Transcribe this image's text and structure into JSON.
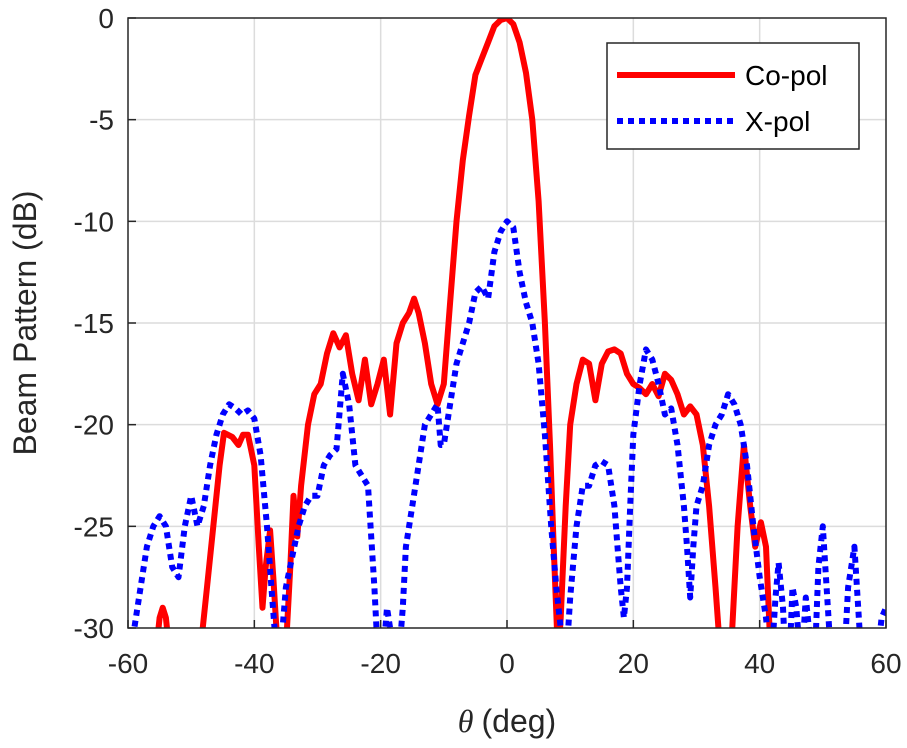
{
  "chart_data": {
    "type": "line",
    "title": "",
    "xlabel_symbol": "θ",
    "xlabel_unit": "(deg)",
    "ylabel": "Beam Pattern (dB)",
    "xlim": [
      -60,
      60
    ],
    "ylim": [
      -30,
      0
    ],
    "xticks": [
      -60,
      -40,
      -20,
      0,
      20,
      40,
      60
    ],
    "yticks": [
      0,
      -5,
      -10,
      -15,
      -20,
      -25,
      -30
    ],
    "grid": true,
    "legend_position": "top-right",
    "series": [
      {
        "name": "Co-pol",
        "color": "#ff0000",
        "style": "solid",
        "points": [
          [
            -55.5,
            -31
          ],
          [
            -55,
            -29.5
          ],
          [
            -54.5,
            -29
          ],
          [
            -54,
            -29.5
          ],
          [
            -53.5,
            -31
          ],
          [
            -48.5,
            -31
          ],
          [
            -47.5,
            -28
          ],
          [
            -46.5,
            -25
          ],
          [
            -45.5,
            -22
          ],
          [
            -44.8,
            -20.4
          ],
          [
            -43.5,
            -20.6
          ],
          [
            -42.5,
            -21
          ],
          [
            -41.8,
            -20.5
          ],
          [
            -41,
            -20.5
          ],
          [
            -40,
            -22
          ],
          [
            -39.3,
            -26
          ],
          [
            -38.7,
            -29
          ],
          [
            -38.2,
            -27
          ],
          [
            -37.5,
            -25.2
          ],
          [
            -37,
            -27.5
          ],
          [
            -36.5,
            -30
          ],
          [
            -36.2,
            -31
          ],
          [
            -35,
            -31
          ],
          [
            -34.3,
            -27
          ],
          [
            -33.8,
            -23.5
          ],
          [
            -33.2,
            -25.5
          ],
          [
            -32.6,
            -23
          ],
          [
            -31.5,
            -20
          ],
          [
            -30.5,
            -18.5
          ],
          [
            -29.5,
            -18
          ],
          [
            -28.5,
            -16.5
          ],
          [
            -27.5,
            -15.5
          ],
          [
            -26.5,
            -16.2
          ],
          [
            -25.5,
            -15.6
          ],
          [
            -24.5,
            -17.5
          ],
          [
            -23.5,
            -18.8
          ],
          [
            -22.5,
            -16.8
          ],
          [
            -21.5,
            -19
          ],
          [
            -20.5,
            -18
          ],
          [
            -19.5,
            -16.8
          ],
          [
            -18.5,
            -19.5
          ],
          [
            -17.5,
            -16
          ],
          [
            -16.5,
            -15
          ],
          [
            -15.5,
            -14.5
          ],
          [
            -14.7,
            -13.8
          ],
          [
            -14,
            -14.5
          ],
          [
            -13,
            -16
          ],
          [
            -12,
            -18
          ],
          [
            -11,
            -19
          ],
          [
            -10,
            -18
          ],
          [
            -9,
            -14
          ],
          [
            -8,
            -10
          ],
          [
            -7,
            -7
          ],
          [
            -6,
            -4.8
          ],
          [
            -5,
            -2.8
          ],
          [
            -4,
            -2
          ],
          [
            -3,
            -1.2
          ],
          [
            -2,
            -0.4
          ],
          [
            -1,
            -0.1
          ],
          [
            0,
            0
          ],
          [
            1,
            -0.3
          ],
          [
            2,
            -1.2
          ],
          [
            3,
            -2.7
          ],
          [
            4,
            -5
          ],
          [
            5,
            -9
          ],
          [
            6,
            -15
          ],
          [
            6.8,
            -21
          ],
          [
            7.4,
            -26
          ],
          [
            7.9,
            -30
          ],
          [
            8.2,
            -31
          ],
          [
            8.2,
            -31
          ],
          [
            8.5,
            -29.5
          ],
          [
            9.3,
            -24
          ],
          [
            10,
            -20
          ],
          [
            11,
            -18
          ],
          [
            12,
            -16.8
          ],
          [
            13,
            -17
          ],
          [
            14,
            -18.8
          ],
          [
            15,
            -17
          ],
          [
            16,
            -16.4
          ],
          [
            17,
            -16.3
          ],
          [
            18,
            -16.5
          ],
          [
            19,
            -17.5
          ],
          [
            20,
            -18
          ],
          [
            21,
            -18.2
          ],
          [
            22,
            -18.5
          ],
          [
            23,
            -18
          ],
          [
            24,
            -18.6
          ],
          [
            25,
            -17.5
          ],
          [
            26,
            -17.8
          ],
          [
            27,
            -18.5
          ],
          [
            28,
            -19.5
          ],
          [
            29,
            -19.1
          ],
          [
            30,
            -19.5
          ],
          [
            31,
            -21
          ],
          [
            32,
            -24
          ],
          [
            33,
            -28
          ],
          [
            33.7,
            -31
          ],
          [
            35.5,
            -31
          ],
          [
            36.5,
            -25
          ],
          [
            37.5,
            -21
          ],
          [
            38.5,
            -24
          ],
          [
            39.3,
            -26
          ],
          [
            40.2,
            -24.8
          ],
          [
            41,
            -26
          ],
          [
            41.7,
            -31
          ]
        ]
      },
      {
        "name": "X-pol",
        "color": "#0000ff",
        "style": "dotted",
        "points": [
          [
            -59.5,
            -31
          ],
          [
            -58,
            -28
          ],
          [
            -57,
            -26
          ],
          [
            -56,
            -25
          ],
          [
            -55,
            -24.5
          ],
          [
            -54,
            -25
          ],
          [
            -53,
            -27
          ],
          [
            -52,
            -27.5
          ],
          [
            -51,
            -25
          ],
          [
            -50,
            -23.5
          ],
          [
            -49,
            -25
          ],
          [
            -48,
            -24
          ],
          [
            -47,
            -22
          ],
          [
            -46,
            -20.5
          ],
          [
            -45,
            -19.5
          ],
          [
            -44,
            -19
          ],
          [
            -43,
            -19.2
          ],
          [
            -42,
            -19.5
          ],
          [
            -41,
            -19.3
          ],
          [
            -40,
            -19.7
          ],
          [
            -39,
            -21.5
          ],
          [
            -38,
            -25
          ],
          [
            -37.3,
            -28
          ],
          [
            -36.8,
            -30
          ],
          [
            -36.5,
            -31
          ],
          [
            -35.8,
            -31
          ],
          [
            -35,
            -28
          ],
          [
            -34,
            -26.5
          ],
          [
            -33,
            -25
          ],
          [
            -32,
            -24
          ],
          [
            -31,
            -23.5
          ],
          [
            -30,
            -23.5
          ],
          [
            -29,
            -22
          ],
          [
            -28,
            -21.5
          ],
          [
            -27,
            -21.2
          ],
          [
            -26,
            -17.5
          ],
          [
            -25,
            -19
          ],
          [
            -24,
            -22
          ],
          [
            -23,
            -22.5
          ],
          [
            -22,
            -23
          ],
          [
            -21,
            -28
          ],
          [
            -20.5,
            -31
          ],
          [
            -19.5,
            -31
          ],
          [
            -19,
            -29
          ],
          [
            -18.5,
            -30
          ],
          [
            -18,
            -31
          ],
          [
            -17,
            -31
          ],
          [
            -16.5,
            -29
          ],
          [
            -16,
            -26
          ],
          [
            -15,
            -24
          ],
          [
            -14,
            -22
          ],
          [
            -13,
            -20
          ],
          [
            -12,
            -19.5
          ],
          [
            -11,
            -19
          ],
          [
            -10.5,
            -21
          ],
          [
            -10,
            -21
          ],
          [
            -9,
            -19
          ],
          [
            -8,
            -17
          ],
          [
            -7,
            -16
          ],
          [
            -6,
            -15
          ],
          [
            -5,
            -13.5
          ],
          [
            -4,
            -13.2
          ],
          [
            -3,
            -13.8
          ],
          [
            -2,
            -11.5
          ],
          [
            -1,
            -10.5
          ],
          [
            0,
            -10
          ],
          [
            1,
            -10.3
          ],
          [
            2,
            -12.5
          ],
          [
            3,
            -14
          ],
          [
            4,
            -15
          ],
          [
            5,
            -17
          ],
          [
            6,
            -20.5
          ],
          [
            7,
            -25
          ],
          [
            7.8,
            -28
          ],
          [
            8.5,
            -30
          ],
          [
            9,
            -31
          ],
          [
            9.5,
            -31
          ],
          [
            10,
            -28.5
          ],
          [
            11,
            -25
          ],
          [
            12,
            -23
          ],
          [
            13,
            -23
          ],
          [
            14,
            -22
          ],
          [
            15,
            -21.8
          ],
          [
            16,
            -22
          ],
          [
            17,
            -24
          ],
          [
            17.5,
            -26
          ],
          [
            18,
            -28
          ],
          [
            18.5,
            -29.5
          ],
          [
            19,
            -28
          ],
          [
            19.5,
            -24
          ],
          [
            20,
            -20.5
          ],
          [
            21,
            -18
          ],
          [
            22,
            -16.3
          ],
          [
            23,
            -16.8
          ],
          [
            24,
            -18
          ],
          [
            25,
            -19.5
          ],
          [
            26,
            -19.2
          ],
          [
            27,
            -21
          ],
          [
            28,
            -24
          ],
          [
            28.5,
            -26
          ],
          [
            29,
            -28.5
          ],
          [
            29.5,
            -26
          ],
          [
            30,
            -24
          ],
          [
            31,
            -23
          ],
          [
            32,
            -21
          ],
          [
            33,
            -20
          ],
          [
            34,
            -19.5
          ],
          [
            35,
            -18.5
          ],
          [
            36,
            -19
          ],
          [
            37,
            -20
          ],
          [
            38,
            -22
          ],
          [
            39,
            -25
          ],
          [
            40,
            -27.5
          ],
          [
            41,
            -29.5
          ],
          [
            41.5,
            -31
          ],
          [
            42,
            -31
          ],
          [
            42.5,
            -28.5
          ],
          [
            43,
            -26.8
          ],
          [
            43.7,
            -29
          ],
          [
            44,
            -31
          ],
          [
            44.8,
            -31
          ],
          [
            45.2,
            -28
          ],
          [
            45.8,
            -29
          ],
          [
            46.3,
            -31
          ],
          [
            46.8,
            -31
          ],
          [
            47.3,
            -28.5
          ],
          [
            47.8,
            -30
          ],
          [
            48.3,
            -31
          ],
          [
            48.8,
            -31
          ],
          [
            49.3,
            -27
          ],
          [
            50,
            -25
          ],
          [
            50.6,
            -28
          ],
          [
            51.2,
            -31
          ],
          [
            53.5,
            -31
          ],
          [
            54,
            -28
          ],
          [
            55,
            -26
          ],
          [
            55.6,
            -29
          ],
          [
            56,
            -31
          ],
          [
            58.8,
            -31
          ],
          [
            59.3,
            -29.5
          ],
          [
            60,
            -29
          ]
        ]
      }
    ]
  }
}
